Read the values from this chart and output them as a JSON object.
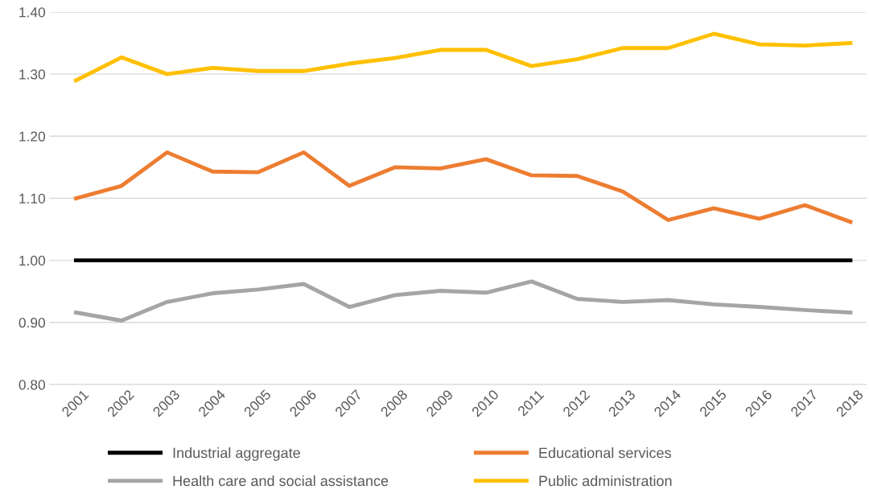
{
  "chart_data": {
    "type": "line",
    "categories": [
      "2001",
      "2002",
      "2003",
      "2004",
      "2005",
      "2006",
      "2007",
      "2008",
      "2009",
      "2010",
      "2011",
      "2012",
      "2013",
      "2014",
      "2015",
      "2016",
      "2017",
      "2018"
    ],
    "series": [
      {
        "name": "Industrial aggregate",
        "color": "#000000",
        "values": [
          1.0,
          1.0,
          1.0,
          1.0,
          1.0,
          1.0,
          1.0,
          1.0,
          1.0,
          1.0,
          1.0,
          1.0,
          1.0,
          1.0,
          1.0,
          1.0,
          1.0,
          1.0
        ]
      },
      {
        "name": "Educational services",
        "color": "#ed7d31",
        "values": [
          1.1,
          1.12,
          1.174,
          1.143,
          1.142,
          1.174,
          1.12,
          1.15,
          1.148,
          1.163,
          1.137,
          1.136,
          1.111,
          1.065,
          1.084,
          1.067,
          1.089,
          1.062
        ]
      },
      {
        "name": "Health care and social assistance",
        "color": "#a5a5a5",
        "values": [
          0.916,
          0.903,
          0.933,
          0.947,
          0.953,
          0.962,
          0.925,
          0.944,
          0.951,
          0.948,
          0.966,
          0.938,
          0.933,
          0.936,
          0.929,
          0.925,
          0.92,
          0.916
        ]
      },
      {
        "name": "Public administration",
        "color": "#ffc000",
        "values": [
          1.29,
          1.327,
          1.3,
          1.31,
          1.305,
          1.305,
          1.317,
          1.326,
          1.339,
          1.339,
          1.313,
          1.324,
          1.342,
          1.342,
          1.365,
          1.348,
          1.346,
          1.35
        ]
      }
    ],
    "ylim": [
      0.8,
      1.4
    ],
    "yticks": [
      {
        "value": 0.8,
        "label": "0.80"
      },
      {
        "value": 0.9,
        "label": "0.90"
      },
      {
        "value": 1.0,
        "label": "1.00"
      },
      {
        "value": 1.1,
        "label": "1.10"
      },
      {
        "value": 1.2,
        "label": "1.20"
      },
      {
        "value": 1.3,
        "label": "1.30"
      },
      {
        "value": 1.4,
        "label": "1.40"
      }
    ],
    "grid": "y",
    "legend": "bottom",
    "marker": "none",
    "line_style": "solid"
  }
}
